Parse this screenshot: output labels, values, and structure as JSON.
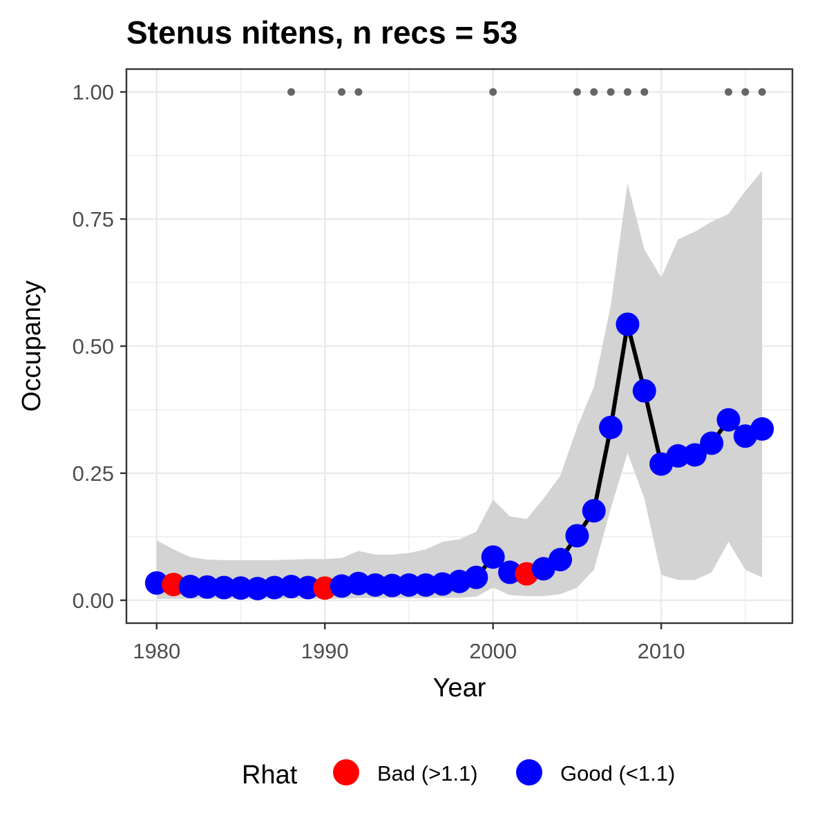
{
  "chart_data": {
    "type": "line",
    "title": "Stenus nitens, n recs = 53",
    "xlabel": "Year",
    "ylabel": "Occupancy",
    "xlim": [
      1978.2,
      2017.8
    ],
    "ylim": [
      -0.045,
      1.045
    ],
    "x_ticks": [
      1980,
      1990,
      2000,
      2010
    ],
    "x_tick_labels": [
      "1980",
      "1990",
      "2000",
      "2010"
    ],
    "y_ticks": [
      0,
      0.25,
      0.5,
      0.75,
      1.0
    ],
    "y_tick_labels": [
      "0.00",
      "0.25",
      "0.50",
      "0.75",
      "1.00"
    ],
    "grid": true,
    "legend": {
      "title": "Rhat",
      "position": "bottom",
      "items": [
        {
          "label": "Bad (>1.1)",
          "color": "#ff0000"
        },
        {
          "label": "Good (<1.1)",
          "color": "#0000ff"
        }
      ]
    },
    "colors": {
      "bad": "#ff0000",
      "good": "#0000ff",
      "line": "#000000",
      "ribbon": "#d3d3d3",
      "record_dot": "#666666"
    },
    "years": [
      1980,
      1981,
      1982,
      1983,
      1984,
      1985,
      1986,
      1987,
      1988,
      1989,
      1990,
      1991,
      1992,
      1993,
      1994,
      1995,
      1996,
      1997,
      1998,
      1999,
      2000,
      2001,
      2002,
      2003,
      2004,
      2005,
      2006,
      2007,
      2008,
      2009,
      2010,
      2011,
      2012,
      2013,
      2014,
      2015,
      2016
    ],
    "occupancy": [
      0.034,
      0.031,
      0.027,
      0.026,
      0.025,
      0.024,
      0.023,
      0.025,
      0.027,
      0.025,
      0.024,
      0.028,
      0.033,
      0.03,
      0.029,
      0.03,
      0.03,
      0.032,
      0.037,
      0.045,
      0.085,
      0.055,
      0.052,
      0.062,
      0.08,
      0.127,
      0.176,
      0.34,
      0.543,
      0.412,
      0.268,
      0.284,
      0.286,
      0.309,
      0.355,
      0.323,
      0.337
    ],
    "rhat_status": [
      "good",
      "bad",
      "good",
      "good",
      "good",
      "good",
      "good",
      "good",
      "good",
      "good",
      "bad",
      "good",
      "good",
      "good",
      "good",
      "good",
      "good",
      "good",
      "good",
      "good",
      "good",
      "good",
      "bad",
      "good",
      "good",
      "good",
      "good",
      "good",
      "good",
      "good",
      "good",
      "good",
      "good",
      "good",
      "good",
      "good",
      "good"
    ],
    "ci_lower": [
      0.003,
      0.003,
      0.003,
      0.003,
      0.003,
      0.003,
      0.003,
      0.003,
      0.003,
      0.003,
      0.003,
      0.003,
      0.004,
      0.004,
      0.004,
      0.004,
      0.004,
      0.005,
      0.005,
      0.007,
      0.025,
      0.01,
      0.008,
      0.008,
      0.012,
      0.025,
      0.06,
      0.18,
      0.29,
      0.2,
      0.05,
      0.04,
      0.04,
      0.055,
      0.115,
      0.06,
      0.045
    ],
    "ci_upper": [
      0.118,
      0.1,
      0.085,
      0.08,
      0.079,
      0.079,
      0.079,
      0.079,
      0.08,
      0.081,
      0.081,
      0.083,
      0.097,
      0.09,
      0.09,
      0.093,
      0.1,
      0.115,
      0.12,
      0.135,
      0.198,
      0.165,
      0.16,
      0.2,
      0.245,
      0.34,
      0.42,
      0.58,
      0.82,
      0.69,
      0.635,
      0.71,
      0.725,
      0.745,
      0.76,
      0.805,
      0.845
    ],
    "record_years": [
      1988,
      1991,
      1992,
      2000,
      2005,
      2006,
      2007,
      2008,
      2009,
      2014,
      2015,
      2016
    ],
    "record_level": 1.0
  }
}
